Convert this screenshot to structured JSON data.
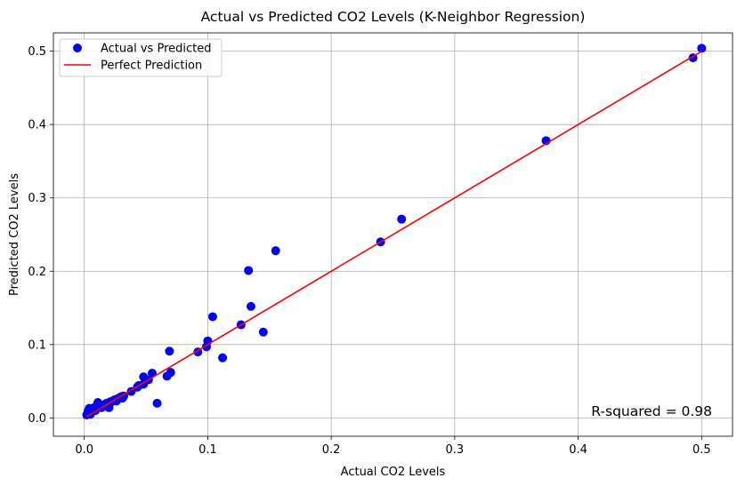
{
  "chart_data": {
    "type": "scatter",
    "title": "Actual vs Predicted CO2 Levels (K-Neighbor Regression)",
    "xlabel": "Actual CO2 Levels",
    "ylabel": "Predicted CO2 Levels",
    "xlim": [
      -0.025,
      0.525
    ],
    "ylim": [
      -0.025,
      0.525
    ],
    "xticks": [
      0.0,
      0.1,
      0.2,
      0.3,
      0.4,
      0.5
    ],
    "yticks": [
      0.0,
      0.1,
      0.2,
      0.3,
      0.4,
      0.5
    ],
    "xtick_labels": [
      "0.0",
      "0.1",
      "0.2",
      "0.3",
      "0.4",
      "0.5"
    ],
    "ytick_labels": [
      "0.0",
      "0.1",
      "0.2",
      "0.3",
      "0.4",
      "0.5"
    ],
    "grid": true,
    "legend_position": "top-left",
    "legend": [
      {
        "label": "Actual vs Predicted",
        "kind": "marker",
        "color": "#0000ff"
      },
      {
        "label": "Perfect Prediction",
        "kind": "line",
        "color": "#ff0000"
      }
    ],
    "annotation": "R-squared = 0.98",
    "series": [
      {
        "name": "Actual vs Predicted",
        "kind": "scatter",
        "color": "#0000ff",
        "points": [
          [
            0.002,
            0.004
          ],
          [
            0.003,
            0.009
          ],
          [
            0.004,
            0.013
          ],
          [
            0.005,
            0.005
          ],
          [
            0.006,
            0.008
          ],
          [
            0.007,
            0.011
          ],
          [
            0.008,
            0.014
          ],
          [
            0.009,
            0.01
          ],
          [
            0.01,
            0.013
          ],
          [
            0.011,
            0.021
          ],
          [
            0.012,
            0.015
          ],
          [
            0.013,
            0.017
          ],
          [
            0.014,
            0.014
          ],
          [
            0.015,
            0.016
          ],
          [
            0.016,
            0.018
          ],
          [
            0.017,
            0.017
          ],
          [
            0.018,
            0.02
          ],
          [
            0.019,
            0.019
          ],
          [
            0.02,
            0.014
          ],
          [
            0.021,
            0.022
          ],
          [
            0.022,
            0.022
          ],
          [
            0.023,
            0.023
          ],
          [
            0.024,
            0.024
          ],
          [
            0.025,
            0.025
          ],
          [
            0.026,
            0.023
          ],
          [
            0.027,
            0.026
          ],
          [
            0.028,
            0.027
          ],
          [
            0.029,
            0.028
          ],
          [
            0.03,
            0.029
          ],
          [
            0.031,
            0.027
          ],
          [
            0.032,
            0.03
          ],
          [
            0.038,
            0.036
          ],
          [
            0.043,
            0.042
          ],
          [
            0.044,
            0.044
          ],
          [
            0.048,
            0.046
          ],
          [
            0.048,
            0.056
          ],
          [
            0.052,
            0.052
          ],
          [
            0.055,
            0.061
          ],
          [
            0.059,
            0.02
          ],
          [
            0.067,
            0.057
          ],
          [
            0.069,
            0.091
          ],
          [
            0.07,
            0.062
          ],
          [
            0.092,
            0.09
          ],
          [
            0.099,
            0.097
          ],
          [
            0.1,
            0.105
          ],
          [
            0.104,
            0.138
          ],
          [
            0.112,
            0.082
          ],
          [
            0.127,
            0.127
          ],
          [
            0.133,
            0.201
          ],
          [
            0.135,
            0.152
          ],
          [
            0.145,
            0.117
          ],
          [
            0.155,
            0.228
          ],
          [
            0.24,
            0.24
          ],
          [
            0.257,
            0.271
          ],
          [
            0.374,
            0.378
          ],
          [
            0.493,
            0.491
          ],
          [
            0.5,
            0.504
          ]
        ]
      },
      {
        "name": "Perfect Prediction",
        "kind": "line",
        "color": "#ff0000",
        "points": [
          [
            0.002,
            0.002
          ],
          [
            0.5,
            0.5
          ]
        ]
      }
    ]
  }
}
